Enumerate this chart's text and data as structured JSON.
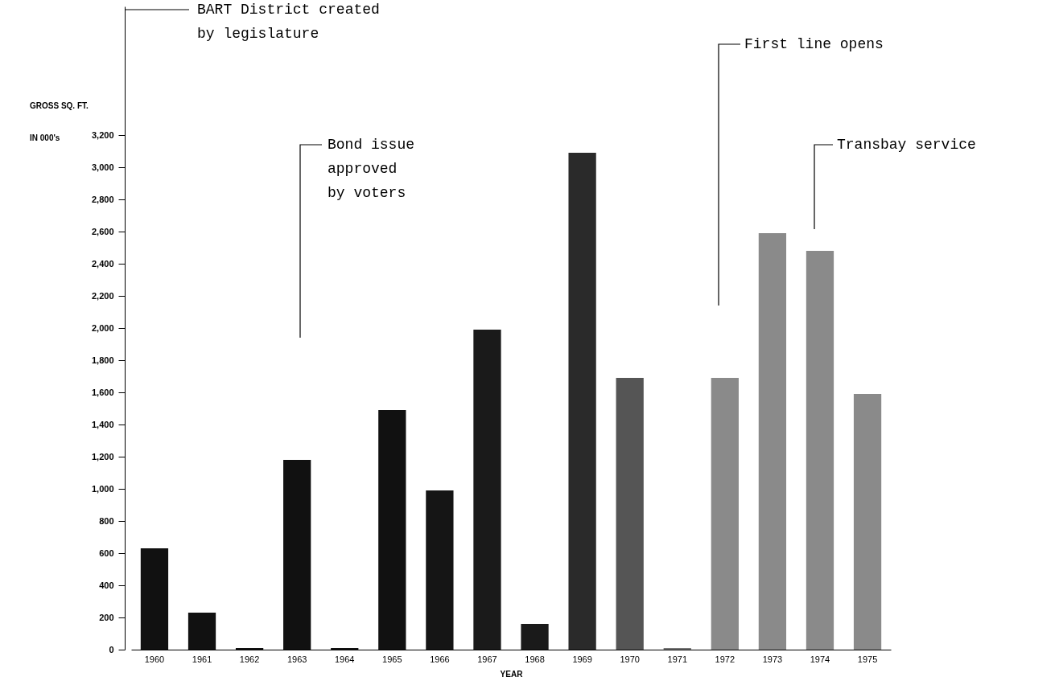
{
  "chart_data": {
    "type": "bar",
    "xlabel": "YEAR",
    "ylabel": "GROSS SQ. FT.\nIN 000's",
    "categories": [
      "1960",
      "1961",
      "1962",
      "1963",
      "1964",
      "1965",
      "1966",
      "1967",
      "1968",
      "1969",
      "1970",
      "1971",
      "1972",
      "1973",
      "1974",
      "1975"
    ],
    "values": [
      630,
      230,
      10,
      1180,
      10,
      1490,
      990,
      1990,
      160,
      3090,
      1690,
      10,
      1690,
      2590,
      2480,
      1590
    ],
    "colors": [
      "#111111",
      "#111111",
      "#111111",
      "#111111",
      "#111111",
      "#111111",
      "#151515",
      "#1a1a1a",
      "#1a1a1a",
      "#2a2a2a",
      "#555555",
      "#777777",
      "#8a8a8a",
      "#8a8a8a",
      "#8a8a8a",
      "#8a8a8a"
    ],
    "ylim": [
      0,
      4000
    ],
    "yticks": [
      0,
      200,
      400,
      600,
      800,
      {
        "value": 1000,
        "label": "1,000"
      },
      {
        "value": 1200,
        "label": "1,200"
      },
      {
        "value": 1400,
        "label": "1,400"
      },
      {
        "value": 1600,
        "label": "1,600"
      },
      {
        "value": 1800,
        "label": "1,800"
      },
      {
        "value": 2000,
        "label": "2,000"
      },
      {
        "value": 2200,
        "label": "2,200"
      },
      {
        "value": 2400,
        "label": "2,400"
      },
      {
        "value": 2600,
        "label": "2,600"
      },
      {
        "value": 2800,
        "label": "2,800"
      },
      {
        "value": 3000,
        "label": "3,000"
      },
      {
        "value": 3200,
        "label": "3,200"
      }
    ],
    "grid": false,
    "annotations": [
      "BART District created by legislature",
      "Bond issue approved by voters",
      "First line opens",
      "Transbay service"
    ]
  }
}
